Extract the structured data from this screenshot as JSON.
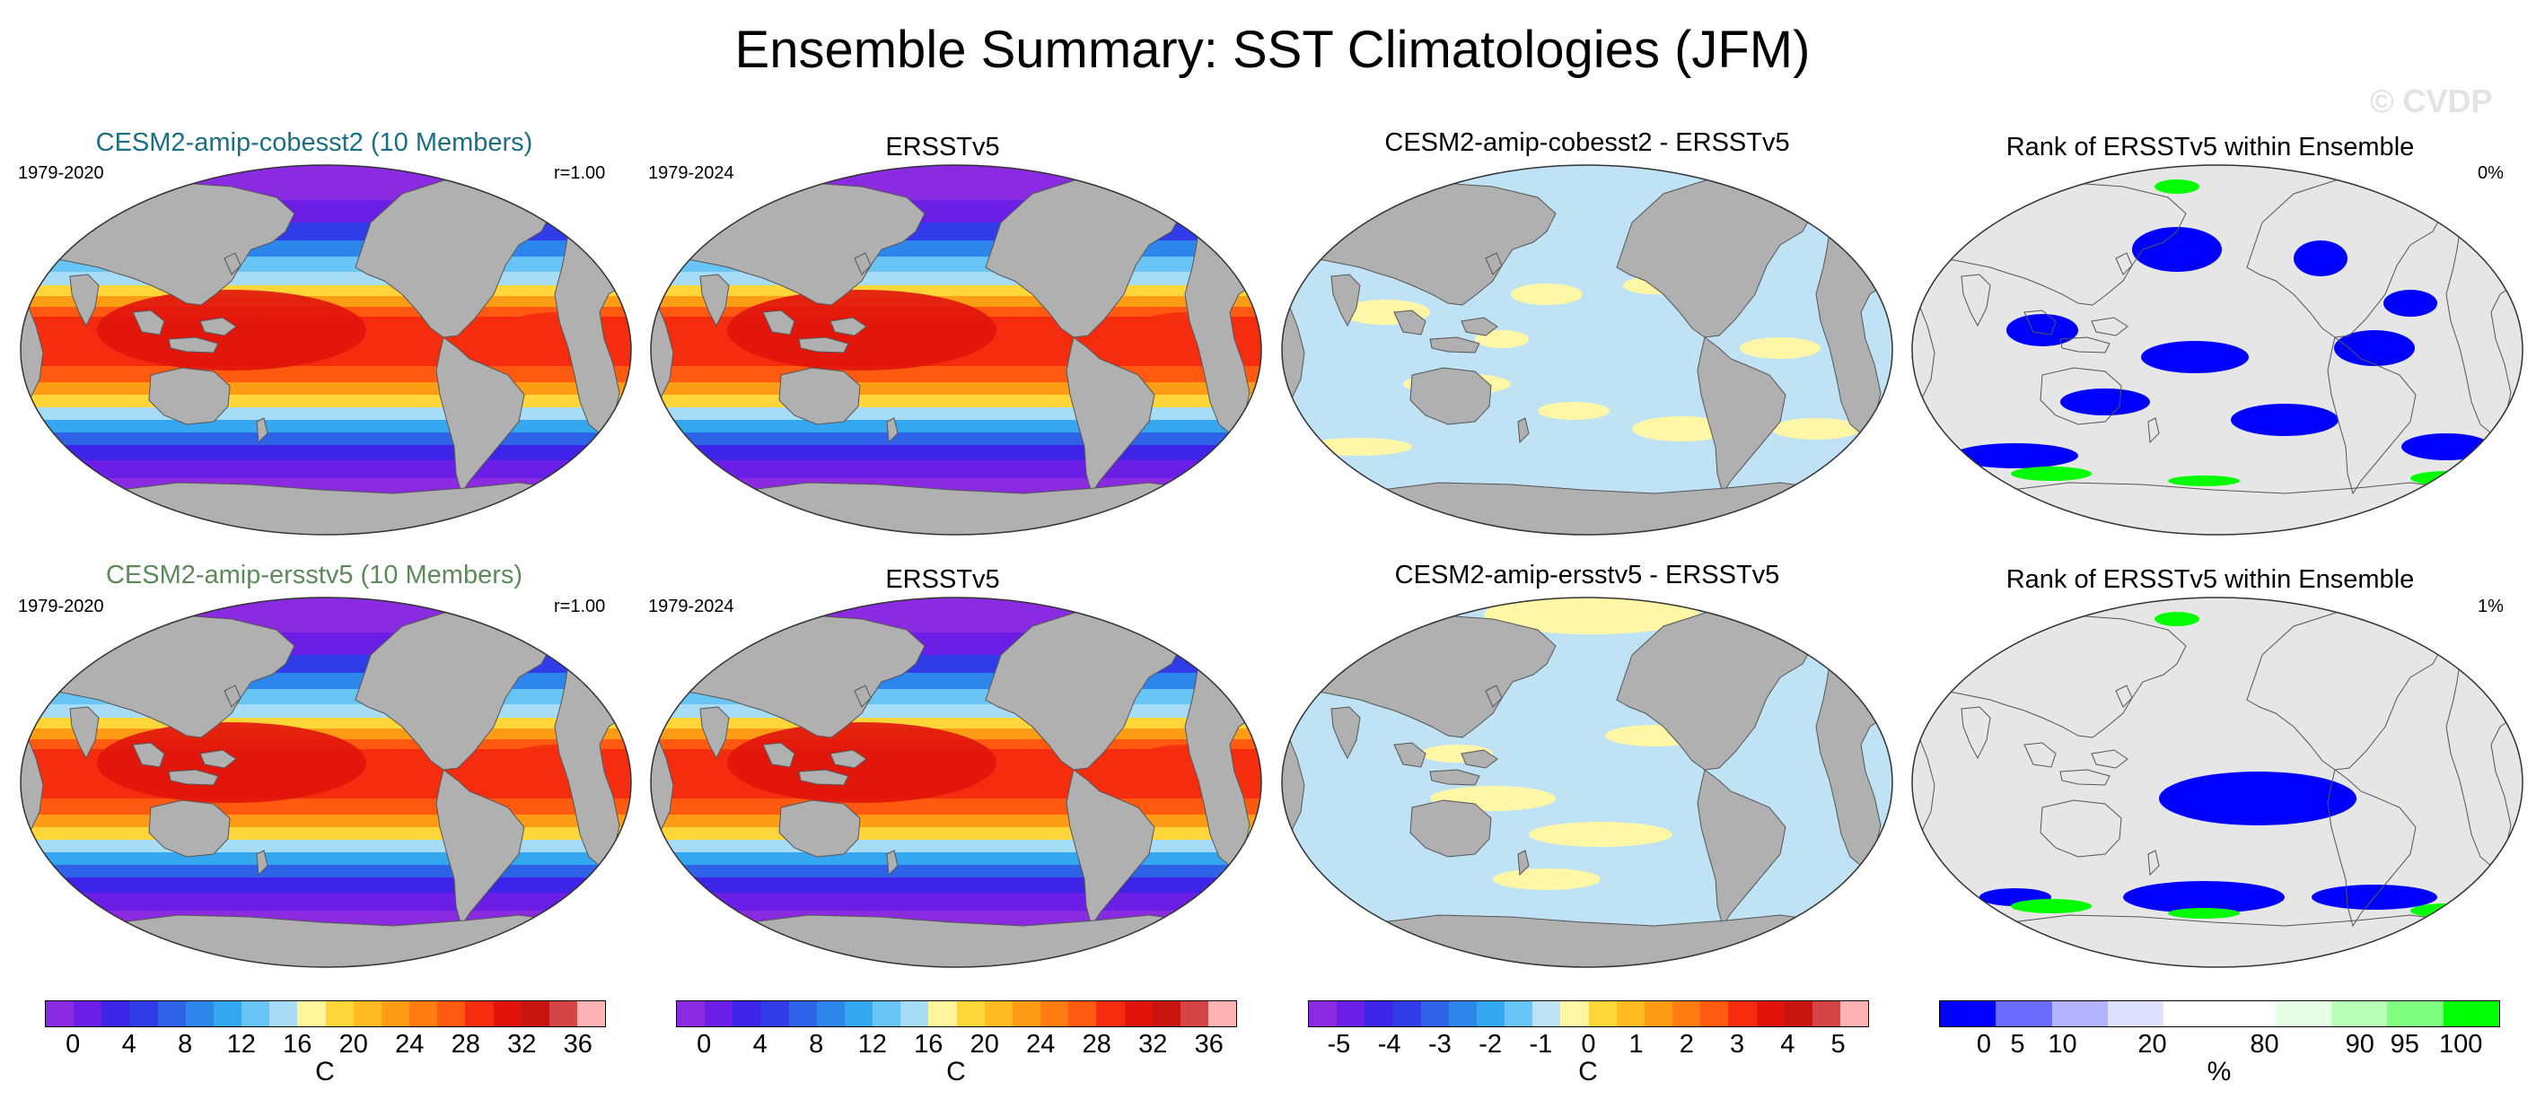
{
  "figure": {
    "title": "Ensemble Summary: SST Climatologies (JFM)",
    "watermark": "© CVDP"
  },
  "rows": [
    {
      "model_title": "CESM2-amip-cobesst2 (10 Members)",
      "model_title_color": "#1b6f83",
      "model_years": "1979-2020",
      "model_r": "r=1.00",
      "obs_title": "ERSSTv5",
      "obs_years": "1979-2024",
      "diff_title": "CESM2-amip-cobesst2 - ERSSTv5",
      "rank_title": "Rank of ERSSTv5 within Ensemble",
      "rank_pct": "0%"
    },
    {
      "model_title": "CESM2-amip-ersstv5 (10 Members)",
      "model_title_color": "#5c8a5a",
      "model_years": "1979-2020",
      "model_r": "r=1.00",
      "obs_title": "ERSSTv5",
      "obs_years": "1979-2024",
      "diff_title": "CESM2-amip-ersstv5 - ERSSTv5",
      "rank_title": "Rank of ERSSTv5 within Ensemble",
      "rank_pct": "1%"
    }
  ],
  "colorbars": [
    {
      "name": "sst",
      "unit": "C",
      "colors": [
        "#8a2be2",
        "#6a1ee6",
        "#3d24e8",
        "#2f3ce8",
        "#2e63e8",
        "#2c86ec",
        "#35a6f0",
        "#68c4f4",
        "#a6dcf5",
        "#fff59a",
        "#ffd63a",
        "#ffbb1f",
        "#ff9c15",
        "#ff7d10",
        "#ff5a10",
        "#f52c0e",
        "#e1140c",
        "#c8140e",
        "#d64545",
        "#ffb3b3"
      ],
      "ticks": [
        "0",
        "4",
        "8",
        "12",
        "16",
        "20",
        "24",
        "28",
        "32",
        "36"
      ]
    },
    {
      "name": "sst-obs",
      "unit": "C",
      "colors": [
        "#8a2be2",
        "#6a1ee6",
        "#3d24e8",
        "#2f3ce8",
        "#2e63e8",
        "#2c86ec",
        "#35a6f0",
        "#68c4f4",
        "#a6dcf5",
        "#fff59a",
        "#ffd63a",
        "#ffbb1f",
        "#ff9c15",
        "#ff7d10",
        "#ff5a10",
        "#f52c0e",
        "#e1140c",
        "#c8140e",
        "#d64545",
        "#ffb3b3"
      ],
      "ticks": [
        "0",
        "4",
        "8",
        "12",
        "16",
        "20",
        "24",
        "28",
        "32",
        "36"
      ]
    },
    {
      "name": "diff",
      "unit": "C",
      "colors": [
        "#8a2be2",
        "#6a1ee6",
        "#3d24e8",
        "#2f3ce8",
        "#2e63e8",
        "#2c86ec",
        "#35a6f0",
        "#68c4f4",
        "#bfe2f5",
        "#fff7a6",
        "#ffd63a",
        "#ffbb1f",
        "#ff9c15",
        "#ff7d10",
        "#ff5a10",
        "#f52c0e",
        "#e1140c",
        "#c8140e",
        "#d64545",
        "#ffb3b3"
      ],
      "ticks": [
        "-5",
        "-4",
        "-3",
        "-2",
        "-1",
        "0",
        "1",
        "2",
        "3",
        "4",
        "5"
      ]
    },
    {
      "name": "rank",
      "unit": "%",
      "colors": [
        "#0000ff",
        "#6b6bff",
        "#b3b3ff",
        "#e0e0ff",
        "#ffffff",
        "#ffffff",
        "#e6ffe6",
        "#b8ffb8",
        "#80ff80",
        "#00ff00"
      ],
      "ticks": [
        "0",
        "5",
        "10",
        "20",
        "80",
        "90",
        "95",
        "100"
      ]
    }
  ],
  "map_colors": {
    "land": "#b0b0b0",
    "frame_bg": "#e6e6e6",
    "rank_blue": "#0000ff",
    "rank_green": "#00ff00",
    "diff_light_blue": "#bfe2f5",
    "diff_yellow": "#fff7a6"
  }
}
